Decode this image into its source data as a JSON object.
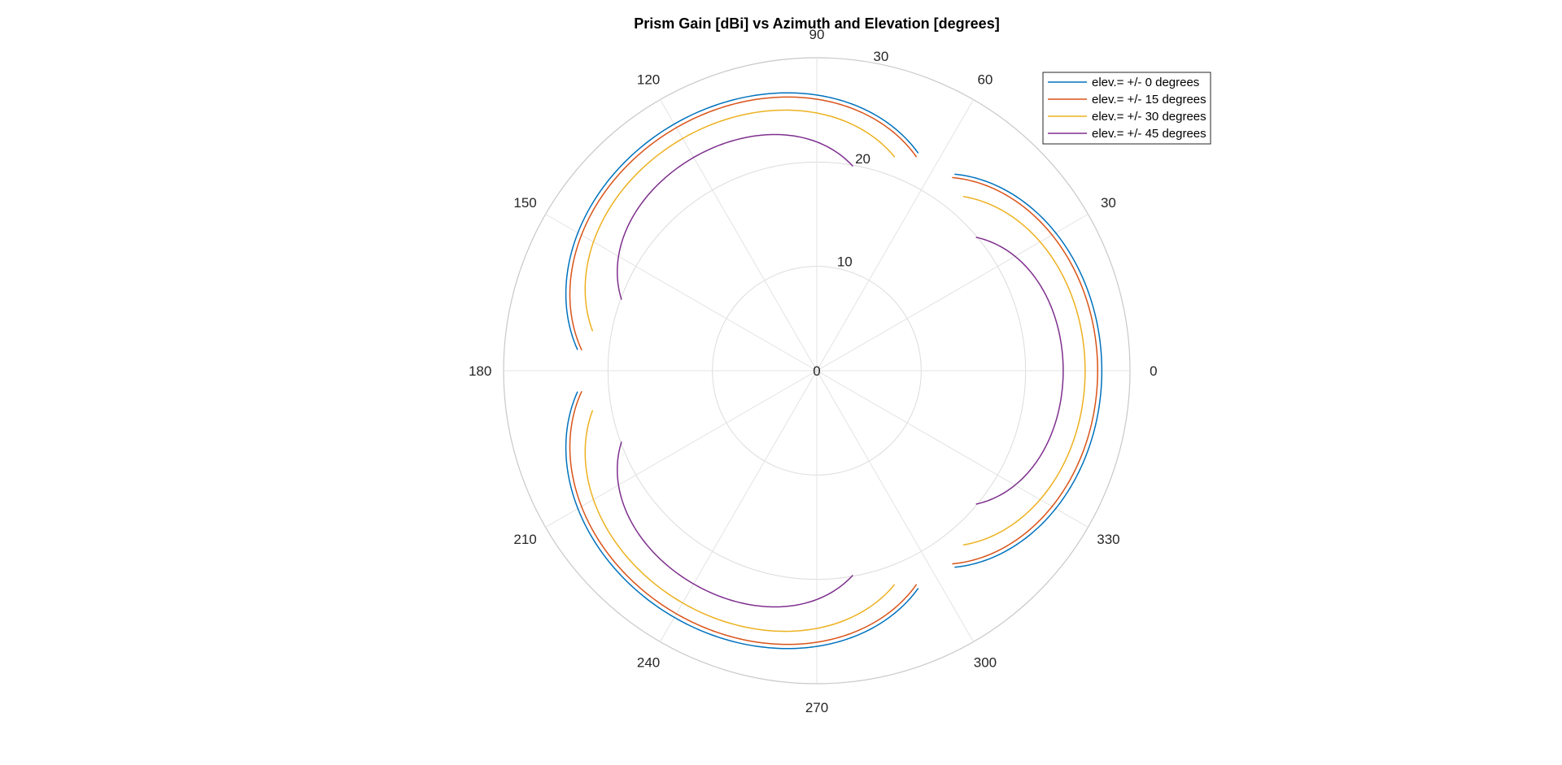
{
  "chart_data": {
    "type": "polar-line",
    "title": "Prism Gain [dBi] vs Azimuth and Elevation [degrees]",
    "theta_ticks": [
      "0",
      "30",
      "60",
      "90",
      "120",
      "150",
      "180",
      "210",
      "240",
      "270",
      "300",
      "330"
    ],
    "r_ticks": [
      "0",
      "10",
      "20",
      "30"
    ],
    "rlim": [
      0,
      30
    ],
    "grid": true,
    "legend_position": "top-right",
    "series": [
      {
        "name": "elev.= +/- 0 degrees",
        "color": "#0072BD",
        "lobes": [
          {
            "from": -55,
            "to": 55,
            "r_peak": 27.3,
            "r_edge": 23.0
          },
          {
            "from": 65,
            "to": 175,
            "r_peak": 27.3,
            "r_edge": 23.0
          },
          {
            "from": 185,
            "to": 295,
            "r_peak": 27.3,
            "r_edge": 23.0
          }
        ]
      },
      {
        "name": "elev.= +/- 15 degrees",
        "color": "#D95319",
        "lobes": [
          {
            "from": -55,
            "to": 55,
            "r_peak": 26.9,
            "r_edge": 22.6
          },
          {
            "from": 65,
            "to": 175,
            "r_peak": 26.9,
            "r_edge": 22.6
          },
          {
            "from": 185,
            "to": 295,
            "r_peak": 26.9,
            "r_edge": 22.6
          }
        ]
      },
      {
        "name": "elev.= +/- 30 degrees",
        "color": "#EDB120",
        "lobes": [
          {
            "from": -50,
            "to": 50,
            "r_peak": 25.7,
            "r_edge": 21.8
          },
          {
            "from": 70,
            "to": 170,
            "r_peak": 25.7,
            "r_edge": 21.8
          },
          {
            "from": 190,
            "to": 290,
            "r_peak": 25.7,
            "r_edge": 21.8
          }
        ]
      },
      {
        "name": "elev.= +/- 45 degrees",
        "color": "#7E2F8E",
        "lobes": [
          {
            "from": -40,
            "to": 40,
            "r_peak": 23.6,
            "r_edge": 19.9
          },
          {
            "from": 80,
            "to": 160,
            "r_peak": 23.6,
            "r_edge": 19.9
          },
          {
            "from": 200,
            "to": 280,
            "r_peak": 23.6,
            "r_edge": 19.9
          }
        ]
      }
    ]
  }
}
